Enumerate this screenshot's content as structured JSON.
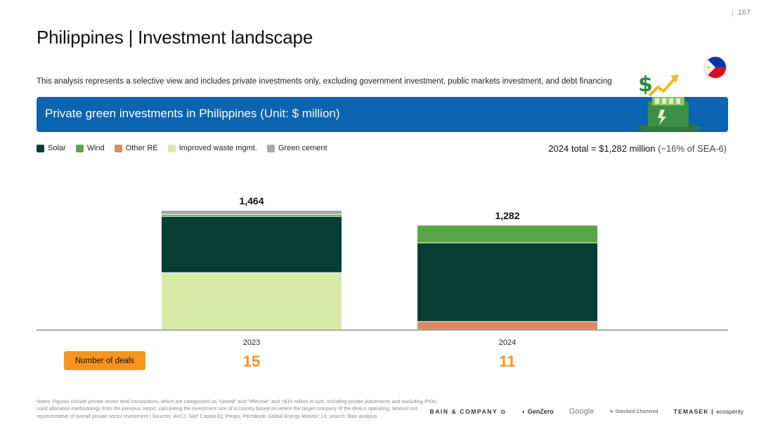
{
  "page": {
    "number": "167",
    "title": "Philippines | Investment landscape",
    "subtitle": "This analysis represents a selective view and includes private investments only, excluding government investment, public markets investment, and debt financing"
  },
  "banner": {
    "title": "Private green investments in Philippines",
    "unit": "(Unit: $ million)"
  },
  "summary": {
    "total_label": "2024 total = $1,282 million",
    "share_label": "(~16% of SEA-6)"
  },
  "deals": {
    "label": "Number of deals",
    "counts": [
      "15",
      "11"
    ]
  },
  "colors": {
    "solar": "#073f35",
    "wind": "#5aa646",
    "other_re": "#de8866",
    "waste": "#d9eaa8",
    "cement": "#a7a7a7",
    "banner": "#0b64b0",
    "accent": "#f7941d"
  },
  "chart_data": {
    "type": "bar",
    "stacked": true,
    "categories": [
      "2023",
      "2024"
    ],
    "totals": [
      1464,
      1282
    ],
    "total_labels": [
      "1,464",
      "1,282"
    ],
    "series": [
      {
        "name": "Other RE",
        "key": "other_re",
        "values": [
          0,
          100
        ]
      },
      {
        "name": "Improved waste mgmt.",
        "key": "waste",
        "values": [
          700,
          0
        ]
      },
      {
        "name": "Solar",
        "key": "solar",
        "values": [
          690,
          965
        ]
      },
      {
        "name": "Wind",
        "key": "wind",
        "values": [
          24,
          217
        ]
      },
      {
        "name": "Green cement",
        "key": "cement",
        "values": [
          50,
          0
        ]
      }
    ],
    "legend_order": [
      "Solar",
      "Wind",
      "Other RE",
      "Improved waste mgmt.",
      "Green cement"
    ],
    "ylim": [
      0,
      1464
    ]
  },
  "notes": "Notes: Figures include private sector deal transactions, which are categorized as \"closed\" and \"effective\" and >$10 million in size, including private placements and excluding IPOs; used allocation methodology from the previous report, calculating the investment size of a country based on where the target company of the deal is operating; amount not representative of overall private sector investment | Sources: AVCJ; S&P Capital IQ; Preqin; PitchBook; Global Energy Monitor; Lit. search; Bain analysis",
  "logos": {
    "bain": "BAIN & COMPANY",
    "genzero": "GenZero",
    "google": "Google",
    "standard": "Standard Chartered",
    "temasek": "TEMASEK",
    "ecosperity": "ecosperity"
  }
}
